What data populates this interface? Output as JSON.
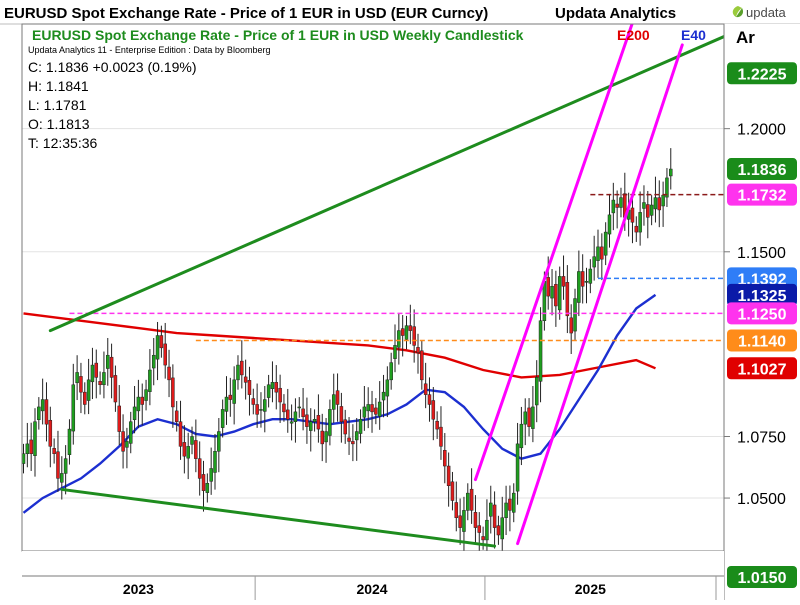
{
  "header": {
    "title": "EURUSD Spot Exchange Rate - Price of 1 EUR in USD (EUR Curncy)",
    "publisher": "Updata Analytics",
    "logo_text": "updata"
  },
  "chart_data": {
    "type": "candlestick",
    "title": "EURUSD Spot Exchange Rate - Price of 1 EUR in USD Weekly Candlestick",
    "subtitle": "Updata Analytics 11 - Enterprise Edition : Data by Bloomberg",
    "legend": [
      {
        "name": "E200",
        "color": "#e00000"
      },
      {
        "name": "E40",
        "color": "#1c2fd0"
      }
    ],
    "axis_unit_label": "Ar",
    "ohlc_readout": {
      "close": "C: 1.1836  +0.0023 (0.19%)",
      "high": "H: 1.1841",
      "low": "L: 1.1781",
      "open": "O: 1.1813",
      "time": "T: 12:35:36"
    },
    "ylim": [
      1.0285,
      1.2425
    ],
    "y_ticks": [
      "1.2000",
      "1.1500",
      "1.0750",
      "1.0500"
    ],
    "x_ticks": [
      "2023",
      "2024",
      "2025"
    ],
    "price_labels": [
      {
        "text": "1.2225",
        "value": 1.2225,
        "color": "#1a8c1a"
      },
      {
        "text": "1.1836",
        "value": 1.1836,
        "color": "#1a8c1a"
      },
      {
        "text": "1.1732",
        "value": 1.1732,
        "color": "#ff33ee"
      },
      {
        "text": "1.1392",
        "value": 1.1392,
        "color": "#2f7df7"
      },
      {
        "text": "1.1325",
        "value": 1.1325,
        "color": "#0a1aa8"
      },
      {
        "text": "1.1250",
        "value": 1.125,
        "color": "#ff33ee"
      },
      {
        "text": "1.1140",
        "value": 1.114,
        "color": "#ff8c1a"
      },
      {
        "text": "1.1027",
        "value": 1.1027,
        "color": "#e00000"
      },
      {
        "text": "1.0150",
        "value": 1.015,
        "color": "#1a8c1a"
      }
    ],
    "horizontal_levels": [
      {
        "value": 1.1732,
        "color": "#8b1a1a",
        "from_week": 148
      },
      {
        "value": 1.1392,
        "color": "#2f7df7",
        "from_week": 150
      },
      {
        "value": 1.125,
        "color": "#ff33ee",
        "from_week": 12
      },
      {
        "value": 1.114,
        "color": "#ff8c1a",
        "from_week": 45
      }
    ],
    "trendlines": [
      {
        "color": "#1e8c1e",
        "x1": 7,
        "y1": 1.118,
        "x2": 186,
        "y2": 1.2395
      },
      {
        "color": "#1e8c1e",
        "x1": 10,
        "y1": 1.0535,
        "x2": 123,
        "y2": 1.0305
      },
      {
        "color": "#ff00ff",
        "x1": 118,
        "y1": 1.0575,
        "x2": 159,
        "y2": 1.243
      },
      {
        "color": "#ff00ff",
        "x1": 129,
        "y1": 1.0315,
        "x2": 172,
        "y2": 1.234
      }
    ],
    "ema200": [
      [
        0,
        1.125
      ],
      [
        10,
        1.123
      ],
      [
        20,
        1.121
      ],
      [
        30,
        1.119
      ],
      [
        40,
        1.117
      ],
      [
        50,
        1.116
      ],
      [
        60,
        1.115
      ],
      [
        70,
        1.114
      ],
      [
        80,
        1.113
      ],
      [
        90,
        1.112
      ],
      [
        100,
        1.11
      ],
      [
        110,
        1.107
      ],
      [
        120,
        1.102
      ],
      [
        130,
        1.099
      ],
      [
        140,
        1.1
      ],
      [
        150,
        1.103
      ],
      [
        160,
        1.106
      ],
      [
        165,
        1.1027
      ]
    ],
    "ema40": [
      [
        0,
        1.044
      ],
      [
        5,
        1.05
      ],
      [
        10,
        1.054
      ],
      [
        15,
        1.058
      ],
      [
        20,
        1.064
      ],
      [
        25,
        1.071
      ],
      [
        30,
        1.079
      ],
      [
        35,
        1.082
      ],
      [
        40,
        1.08
      ],
      [
        45,
        1.076
      ],
      [
        50,
        1.075
      ],
      [
        55,
        1.077
      ],
      [
        60,
        1.08
      ],
      [
        65,
        1.082
      ],
      [
        70,
        1.082
      ],
      [
        75,
        1.081
      ],
      [
        80,
        1.08
      ],
      [
        85,
        1.081
      ],
      [
        90,
        1.082
      ],
      [
        95,
        1.084
      ],
      [
        100,
        1.088
      ],
      [
        105,
        1.094
      ],
      [
        110,
        1.093
      ],
      [
        115,
        1.087
      ],
      [
        120,
        1.078
      ],
      [
        125,
        1.07
      ],
      [
        130,
        1.066
      ],
      [
        135,
        1.068
      ],
      [
        140,
        1.078
      ],
      [
        145,
        1.09
      ],
      [
        150,
        1.102
      ],
      [
        155,
        1.116
      ],
      [
        160,
        1.127
      ],
      [
        165,
        1.1325
      ]
    ],
    "candle_closes": [
      1.068,
      1.072,
      1.068,
      1.081,
      1.087,
      1.09,
      1.08,
      1.071,
      1.068,
      1.058,
      1.06,
      1.066,
      1.078,
      1.096,
      1.101,
      1.093,
      1.088,
      1.098,
      1.104,
      1.099,
      1.096,
      1.101,
      1.108,
      1.099,
      1.089,
      1.077,
      1.069,
      1.073,
      1.081,
      1.087,
      1.091,
      1.088,
      1.094,
      1.102,
      1.108,
      1.116,
      1.111,
      1.104,
      1.098,
      1.087,
      1.081,
      1.071,
      1.067,
      1.071,
      1.075,
      1.066,
      1.058,
      1.053,
      1.056,
      1.062,
      1.069,
      1.077,
      1.086,
      1.091,
      1.09,
      1.098,
      1.104,
      1.1,
      1.097,
      1.092,
      1.088,
      1.084,
      1.086,
      1.09,
      1.096,
      1.097,
      1.093,
      1.089,
      1.085,
      1.082,
      1.081,
      1.085,
      1.087,
      1.083,
      1.079,
      1.081,
      1.082,
      1.078,
      1.072,
      1.077,
      1.086,
      1.092,
      1.088,
      1.081,
      1.076,
      1.073,
      1.072,
      1.077,
      1.082,
      1.087,
      1.088,
      1.085,
      1.084,
      1.089,
      1.093,
      1.098,
      1.105,
      1.112,
      1.118,
      1.116,
      1.12,
      1.118,
      1.112,
      1.109,
      1.098,
      1.092,
      1.088,
      1.082,
      1.078,
      1.071,
      1.063,
      1.055,
      1.049,
      1.042,
      1.038,
      1.045,
      1.052,
      1.045,
      1.038,
      1.036,
      1.033,
      1.041,
      1.048,
      1.038,
      1.035,
      1.042,
      1.048,
      1.045,
      1.052,
      1.072,
      1.08,
      1.085,
      1.079,
      1.087,
      1.099,
      1.122,
      1.138,
      1.132,
      1.136,
      1.128,
      1.14,
      1.136,
      1.124,
      1.117,
      1.131,
      1.142,
      1.136,
      1.138,
      1.143,
      1.148,
      1.152,
      1.147,
      1.158,
      1.165,
      1.171,
      1.168,
      1.172,
      1.164,
      1.167,
      1.162,
      1.158,
      1.166,
      1.17,
      1.164,
      1.169,
      1.172,
      1.167,
      1.173,
      1.18,
      1.1836
    ]
  }
}
